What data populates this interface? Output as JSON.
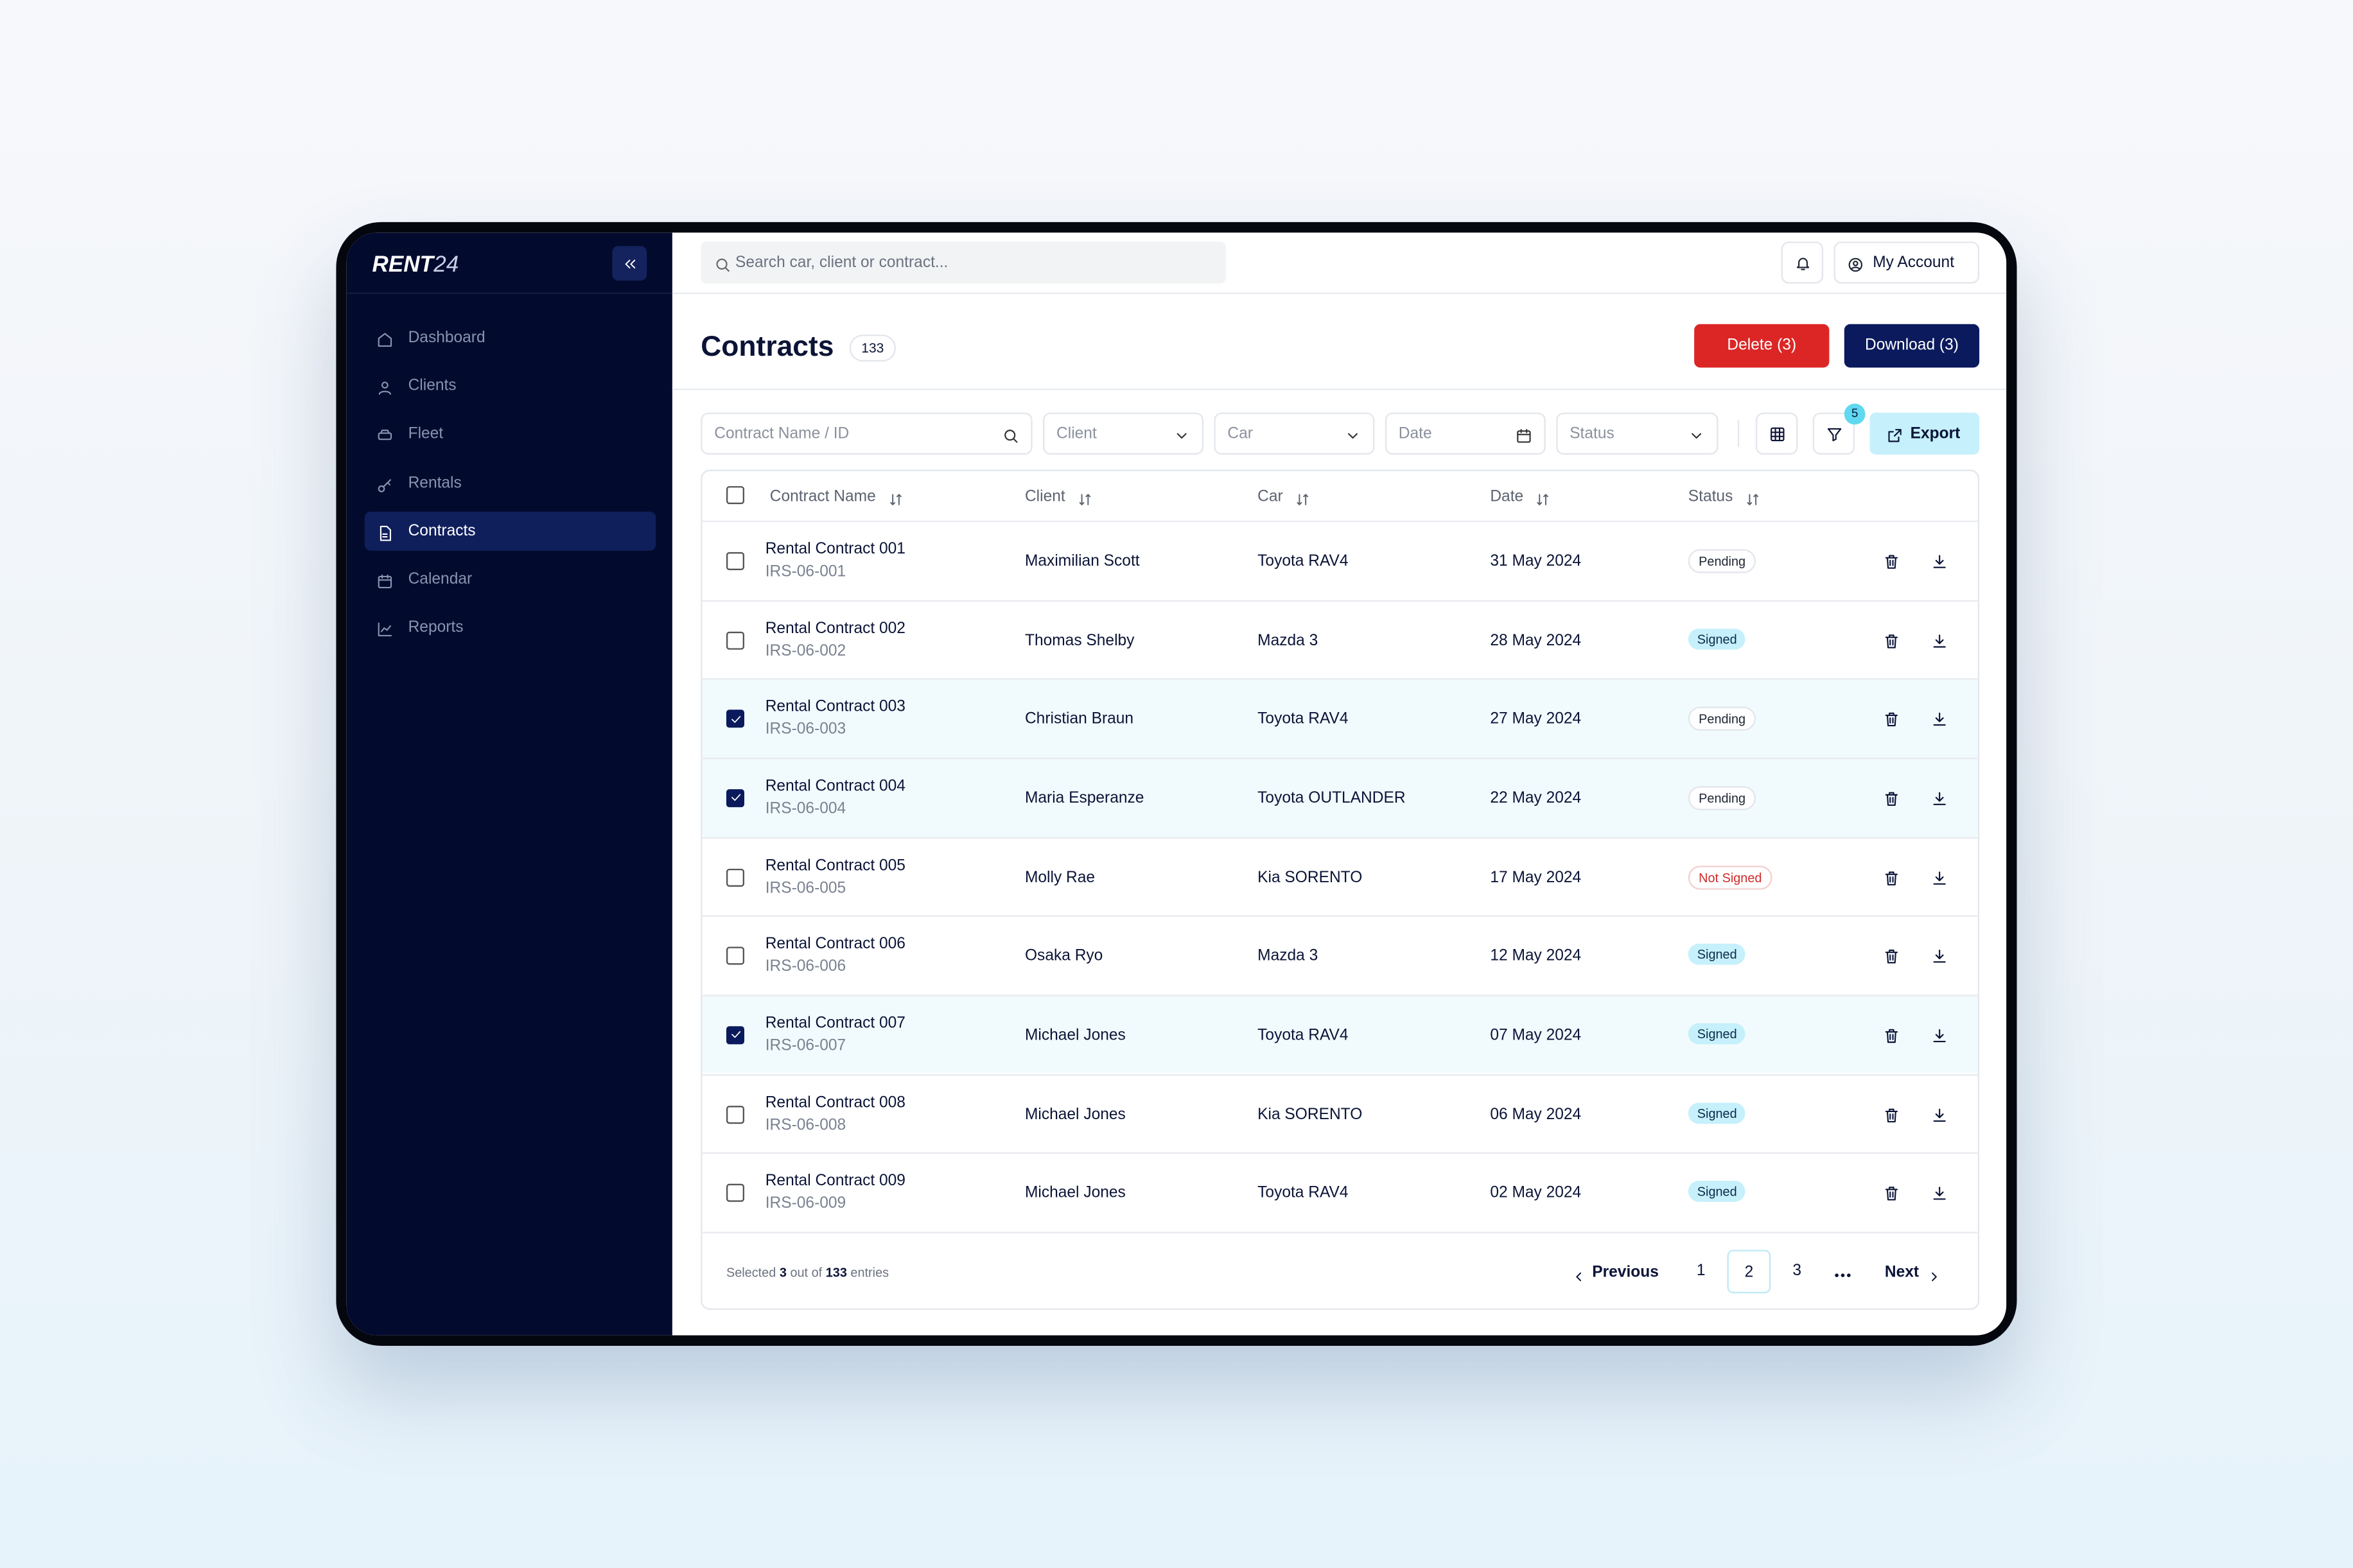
{
  "brand": {
    "name": "RENT",
    "suffix": "24"
  },
  "sidebar": {
    "items": [
      "Dashboard",
      "Clients",
      "Fleet",
      "Rentals",
      "Contracts",
      "Calendar",
      "Reports"
    ],
    "active": 4
  },
  "topbar": {
    "search_placeholder": "Search car, client or contract...",
    "account": "My Account"
  },
  "header": {
    "title": "Contracts",
    "count": 133,
    "delete": "Delete (3)",
    "download": "Download (3)"
  },
  "filters": {
    "name": "Contract Name / ID",
    "client": "Client",
    "car": "Car",
    "date": "Date",
    "status": "Status",
    "filter_count": 5,
    "export": "Export"
  },
  "table": {
    "columns": [
      "Contract Name",
      "Client",
      "Car",
      "Date",
      "Status"
    ],
    "rows": [
      {
        "name": "Rental Contract 001",
        "id": "IRS-06-001",
        "client": "Maximilian Scott",
        "car": "Toyota RAV4",
        "date": "31 May 2024",
        "status": "Pending",
        "checked": false
      },
      {
        "name": "Rental Contract 002",
        "id": "IRS-06-002",
        "client": "Thomas Shelby",
        "car": "Mazda 3",
        "date": "28 May 2024",
        "status": "Signed",
        "checked": false
      },
      {
        "name": "Rental Contract 003",
        "id": "IRS-06-003",
        "client": "Christian Braun",
        "car": "Toyota RAV4",
        "date": "27 May 2024",
        "status": "Pending",
        "checked": true
      },
      {
        "name": "Rental Contract 004",
        "id": "IRS-06-004",
        "client": "Maria Esperanze",
        "car": "Toyota OUTLANDER",
        "date": "22 May 2024",
        "status": "Pending",
        "checked": true
      },
      {
        "name": "Rental Contract 005",
        "id": "IRS-06-005",
        "client": "Molly Rae",
        "car": "Kia SORENTO",
        "date": "17 May 2024",
        "status": "Not Signed",
        "checked": false
      },
      {
        "name": "Rental Contract 006",
        "id": "IRS-06-006",
        "client": "Osaka Ryo",
        "car": "Mazda 3",
        "date": "12 May 2024",
        "status": "Signed",
        "checked": false
      },
      {
        "name": "Rental Contract 007",
        "id": "IRS-06-007",
        "client": "Michael Jones",
        "car": "Toyota RAV4",
        "date": "07 May 2024",
        "status": "Signed",
        "checked": true
      },
      {
        "name": "Rental Contract 008",
        "id": "IRS-06-008",
        "client": "Michael Jones",
        "car": "Kia SORENTO",
        "date": "06 May 2024",
        "status": "Signed",
        "checked": false
      },
      {
        "name": "Rental Contract 009",
        "id": "IRS-06-009",
        "client": "Michael Jones",
        "car": "Toyota RAV4",
        "date": "02 May 2024",
        "status": "Signed",
        "checked": false
      }
    ]
  },
  "footer": {
    "prefix": "Selected",
    "selected": 3,
    "middle": "out of",
    "total": 133,
    "suffix": "entries"
  },
  "pagination": {
    "previous": "Previous",
    "pages": [
      1,
      2,
      3
    ],
    "current": 1,
    "next": "Next"
  }
}
